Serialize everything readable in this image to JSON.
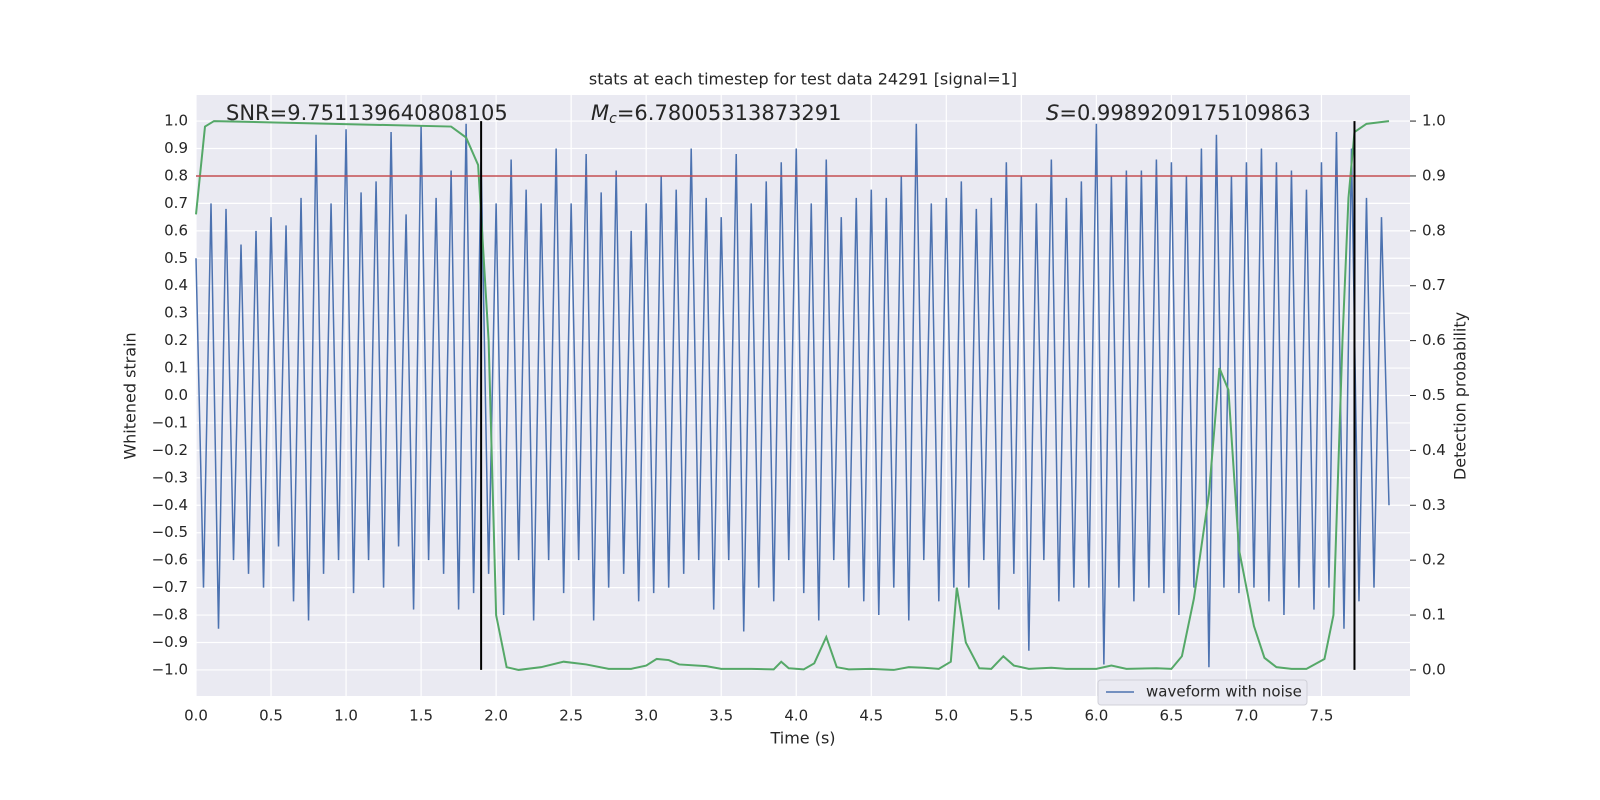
{
  "chart_data": {
    "type": "line",
    "title": "stats at each timestep for test data 24291 [signal=1]",
    "xlabel": "Time (s)",
    "ylabel": "Whitened strain",
    "y2label": "Detection probability",
    "annotations": [
      {
        "text": "SNR=9.751139640808105"
      },
      {
        "symbol": "M",
        "subscript": "c",
        "text": "=6.78005313873291"
      },
      {
        "symbol": "S",
        "text": "=0.9989209175109863"
      }
    ],
    "xlim": [
      0,
      8.09
    ],
    "ylim": [
      -1.095,
      1.095
    ],
    "y2lim": [
      -0.0475,
      1.0475
    ],
    "xticks": [
      {
        "value": 0,
        "label": "0.0"
      },
      0.5,
      {
        "value": 1,
        "label": "1.0"
      },
      1.5,
      {
        "value": 2,
        "label": "2.0"
      },
      2.5,
      {
        "value": 3,
        "label": "3.0"
      },
      3.5,
      {
        "value": 4,
        "label": "4.0"
      },
      4.5,
      {
        "value": 5,
        "label": "5.0"
      },
      5.5,
      {
        "value": 6,
        "label": "6.0"
      },
      6.5,
      {
        "value": 7,
        "label": "7.0"
      },
      7.5
    ],
    "yticks": [
      {
        "value": -1,
        "label": "−1.0"
      },
      {
        "value": -0.9,
        "label": "−0.9"
      },
      {
        "value": -0.8,
        "label": "−0.8"
      },
      {
        "value": -0.7,
        "label": "−0.7"
      },
      {
        "value": -0.6,
        "label": "−0.6"
      },
      {
        "value": -0.5,
        "label": "−0.5"
      },
      {
        "value": -0.4,
        "label": "−0.4"
      },
      {
        "value": -0.3,
        "label": "−0.3"
      },
      {
        "value": -0.2,
        "label": "−0.2"
      },
      {
        "value": -0.1,
        "label": "−0.1"
      },
      {
        "value": 0,
        "label": "0.0"
      },
      0.1,
      0.2,
      0.3,
      0.4,
      0.5,
      0.6,
      0.7,
      0.8,
      0.9,
      {
        "value": 1,
        "label": "1.0"
      }
    ],
    "y2ticks": [
      {
        "value": 0,
        "label": "0.0"
      },
      0.1,
      0.2,
      0.3,
      0.4,
      0.5,
      0.6,
      0.7,
      0.8,
      0.9,
      {
        "value": 1,
        "label": "1.0"
      }
    ],
    "grid": true,
    "legend": "lower right",
    "hlines": [
      {
        "y": 0.8,
        "color": "#c44e52"
      }
    ],
    "vlines": [
      {
        "x": 1.9,
        "ymin": -1,
        "ymax": 1,
        "color": "#000000"
      },
      {
        "x": 7.72,
        "ymin": -1,
        "ymax": 1,
        "color": "#000000"
      }
    ],
    "series": [
      {
        "name": "waveform with noise",
        "color": "#4c72b0",
        "axis": "y",
        "x": [
          0,
          0.05,
          0.1,
          0.15,
          0.2,
          0.25,
          0.3,
          0.35,
          0.4,
          0.45,
          0.5,
          0.55,
          0.6,
          0.65,
          0.7,
          0.75,
          0.8,
          0.85,
          0.9,
          0.95,
          1,
          1.05,
          1.1,
          1.15,
          1.2,
          1.25,
          1.3,
          1.35,
          1.4,
          1.45,
          1.5,
          1.55,
          1.6,
          1.65,
          1.7,
          1.75,
          1.8,
          1.85,
          1.9,
          1.95,
          2,
          2.05,
          2.1,
          2.15,
          2.2,
          2.25,
          2.3,
          2.35,
          2.4,
          2.45,
          2.5,
          2.55,
          2.6,
          2.65,
          2.7,
          2.75,
          2.8,
          2.85,
          2.9,
          2.95,
          3,
          3.05,
          3.1,
          3.15,
          3.2,
          3.25,
          3.3,
          3.35,
          3.4,
          3.45,
          3.5,
          3.55,
          3.6,
          3.65,
          3.7,
          3.75,
          3.8,
          3.85,
          3.9,
          3.95,
          4,
          4.05,
          4.1,
          4.15,
          4.2,
          4.25,
          4.3,
          4.35,
          4.4,
          4.45,
          4.5,
          4.55,
          4.6,
          4.65,
          4.7,
          4.75,
          4.8,
          4.85,
          4.9,
          4.95,
          5,
          5.05,
          5.1,
          5.15,
          5.2,
          5.25,
          5.3,
          5.35,
          5.4,
          5.45,
          5.5,
          5.55,
          5.6,
          5.65,
          5.7,
          5.75,
          5.8,
          5.85,
          5.9,
          5.95,
          6,
          6.05,
          6.1,
          6.15,
          6.2,
          6.25,
          6.3,
          6.35,
          6.4,
          6.45,
          6.5,
          6.55,
          6.6,
          6.65,
          6.7,
          6.75,
          6.8,
          6.85,
          6.9,
          6.95,
          7,
          7.05,
          7.1,
          7.15,
          7.2,
          7.25,
          7.3,
          7.35,
          7.4,
          7.45,
          7.5,
          7.55,
          7.6,
          7.65,
          7.7,
          7.75,
          7.8,
          7.85,
          7.9,
          7.95
        ],
        "values": [
          0.5,
          -0.7,
          0.7,
          -0.85,
          0.68,
          -0.6,
          0.55,
          -0.65,
          0.6,
          -0.7,
          0.65,
          -0.55,
          0.62,
          -0.75,
          0.72,
          -0.82,
          0.95,
          -0.65,
          0.7,
          -0.6,
          0.97,
          -0.72,
          0.74,
          -0.6,
          0.78,
          -0.7,
          0.96,
          -0.55,
          0.66,
          -0.78,
          0.98,
          -0.6,
          0.72,
          -0.65,
          0.82,
          -0.78,
          0.99,
          -0.72,
          0.85,
          -0.65,
          0.7,
          -0.8,
          0.86,
          -0.6,
          0.75,
          -0.82,
          0.7,
          -0.6,
          0.9,
          -0.72,
          0.7,
          -0.6,
          0.88,
          -0.82,
          0.74,
          -0.7,
          0.82,
          -0.65,
          0.6,
          -0.75,
          0.7,
          -0.72,
          0.8,
          -0.7,
          0.75,
          -0.65,
          0.9,
          -0.6,
          0.72,
          -0.78,
          0.65,
          -0.6,
          0.88,
          -0.86,
          0.7,
          -0.7,
          0.78,
          -0.75,
          0.85,
          -0.6,
          0.9,
          -0.72,
          0.7,
          -0.82,
          0.86,
          -0.6,
          0.65,
          -0.7,
          0.72,
          -0.75,
          0.75,
          -0.8,
          0.72,
          -0.7,
          0.8,
          -0.82,
          0.99,
          -0.6,
          0.7,
          -0.75,
          0.72,
          -0.7,
          0.78,
          -0.7,
          0.68,
          -0.6,
          0.72,
          -0.78,
          0.85,
          -0.65,
          0.8,
          -0.93,
          0.7,
          -0.6,
          0.86,
          -0.75,
          0.72,
          -0.7,
          0.78,
          -0.7,
          0.99,
          -0.98,
          0.8,
          -0.7,
          0.82,
          -0.75,
          0.82,
          -0.7,
          0.86,
          -0.72,
          0.85,
          -0.8,
          0.8,
          -0.7,
          0.9,
          -0.99,
          0.95,
          -0.7,
          0.8,
          -0.72,
          0.85,
          -0.7,
          0.9,
          -0.75,
          0.85,
          -0.8,
          0.82,
          -0.7,
          0.75,
          -0.78,
          0.85,
          -0.7,
          0.96,
          -0.85,
          0.9,
          -0.75,
          0.72,
          -0.7,
          0.65,
          -0.4
        ]
      },
      {
        "color": "#55a868",
        "axis": "y2",
        "x": [
          0,
          0.06,
          0.12,
          1.7,
          1.8,
          1.88,
          1.95,
          2.0,
          2.07,
          2.15,
          2.3,
          2.45,
          2.6,
          2.75,
          2.9,
          3.0,
          3.07,
          3.15,
          3.22,
          3.4,
          3.5,
          3.7,
          3.85,
          3.9,
          3.95,
          4.05,
          4.12,
          4.2,
          4.27,
          4.35,
          4.5,
          4.65,
          4.75,
          4.85,
          4.95,
          5.03,
          5.07,
          5.13,
          5.22,
          5.3,
          5.38,
          5.45,
          5.55,
          5.7,
          5.8,
          6.0,
          6.1,
          6.2,
          6.4,
          6.5,
          6.57,
          6.65,
          6.75,
          6.82,
          6.88,
          6.95,
          7.05,
          7.12,
          7.2,
          7.3,
          7.4,
          7.52,
          7.58,
          7.64,
          7.68,
          7.72,
          7.8,
          7.95
        ],
        "values": [
          0.83,
          0.99,
          1.0,
          0.99,
          0.97,
          0.92,
          0.6,
          0.1,
          0.005,
          0.0,
          0.005,
          0.015,
          0.01,
          0.002,
          0.002,
          0.008,
          0.02,
          0.018,
          0.01,
          0.007,
          0.002,
          0.002,
          0.001,
          0.015,
          0.003,
          0.001,
          0.012,
          0.06,
          0.005,
          0.001,
          0.002,
          0.0,
          0.005,
          0.004,
          0.002,
          0.015,
          0.15,
          0.05,
          0.003,
          0.002,
          0.025,
          0.008,
          0.002,
          0.004,
          0.002,
          0.002,
          0.008,
          0.002,
          0.003,
          0.002,
          0.025,
          0.13,
          0.32,
          0.55,
          0.51,
          0.22,
          0.08,
          0.022,
          0.005,
          0.002,
          0.002,
          0.02,
          0.1,
          0.6,
          0.86,
          0.98,
          0.995,
          1.0
        ]
      }
    ]
  }
}
